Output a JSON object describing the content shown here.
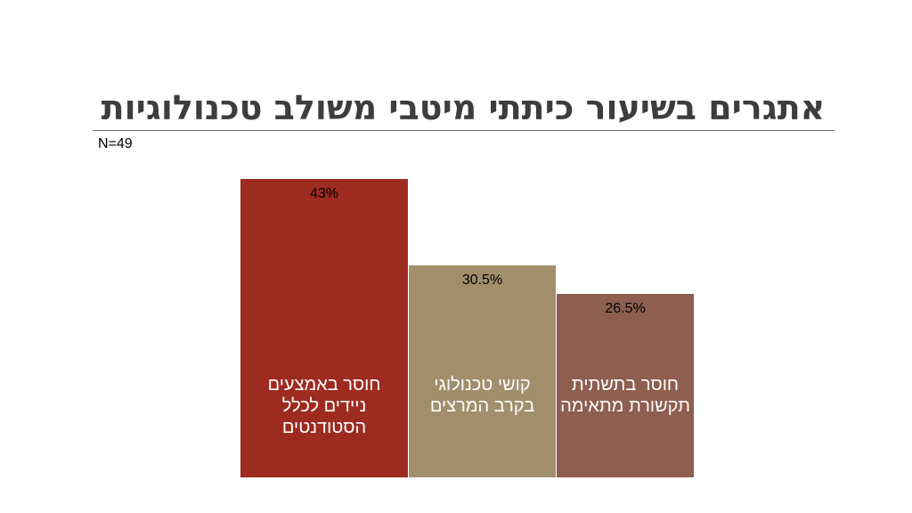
{
  "title": "אתגרים בשיעור כיתתי מיטבי משולב טכנולוגיות",
  "sample_size": "N=49",
  "chart_data": {
    "type": "bar",
    "categories": [
      "חוסר באמצעים ניידים לכלל הסטודנטים",
      "קושי טכנולוגי בקרב המרצים",
      "חוסר בתשתית תקשורת מתאימה"
    ],
    "values": [
      43,
      30.5,
      26.5
    ],
    "data_labels": [
      "43%",
      "30.5%",
      "26.5%"
    ],
    "colors": [
      "#9e2b20",
      "#a18f6c",
      "#8e5e4e"
    ],
    "ylim": [
      0,
      43
    ]
  }
}
